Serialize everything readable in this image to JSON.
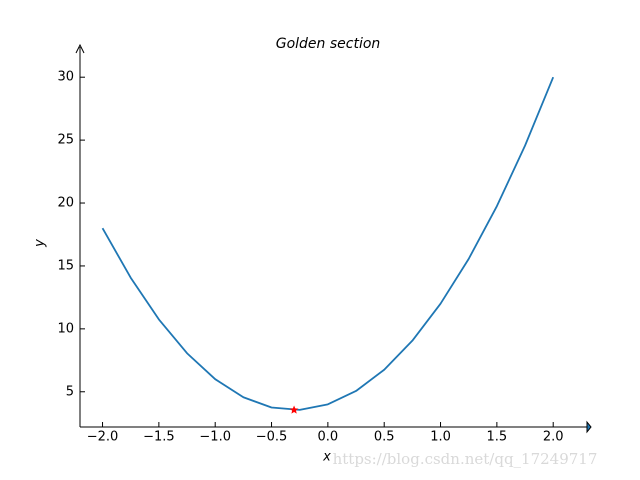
{
  "chart_data": {
    "type": "line",
    "title": "Golden section",
    "x_label": "x",
    "y_label": "y",
    "x": [
      -2,
      -1.75,
      -1.5,
      -1.25,
      -1,
      -0.75,
      -0.5,
      -0.25,
      0,
      0.25,
      0.5,
      0.75,
      1,
      1.25,
      1.5,
      1.75,
      2
    ],
    "values": [
      18,
      14.0625,
      10.75,
      8.0625,
      6,
      4.5625,
      3.75,
      3.5625,
      4,
      5.0625,
      6.75,
      9.0625,
      12,
      15.5625,
      19.75,
      24.5625,
      30
    ],
    "color": "#1f77b4",
    "marker": {
      "x": [
        -0.3
      ],
      "values": [
        3.55
      ],
      "color": "#ff0000"
    },
    "xlim": [
      -2.2,
      2.3
    ],
    "ylim": [
      2.2,
      32.4
    ],
    "xticks": [
      {
        "value": -2,
        "label": "−2.0"
      },
      {
        "value": -1.5,
        "label": "−1.5"
      },
      {
        "value": -1,
        "label": "−1.0"
      },
      {
        "value": -0.5,
        "label": "−0.5"
      },
      {
        "value": 0,
        "label": "0.0"
      },
      0.5,
      {
        "value": 1,
        "label": "1.0"
      },
      1.5,
      {
        "value": 2,
        "label": "2.0"
      }
    ],
    "yticks": [
      5,
      10,
      15,
      20,
      25,
      30
    ],
    "watermark": "https://blog.csdn.net/qq_17249717"
  }
}
